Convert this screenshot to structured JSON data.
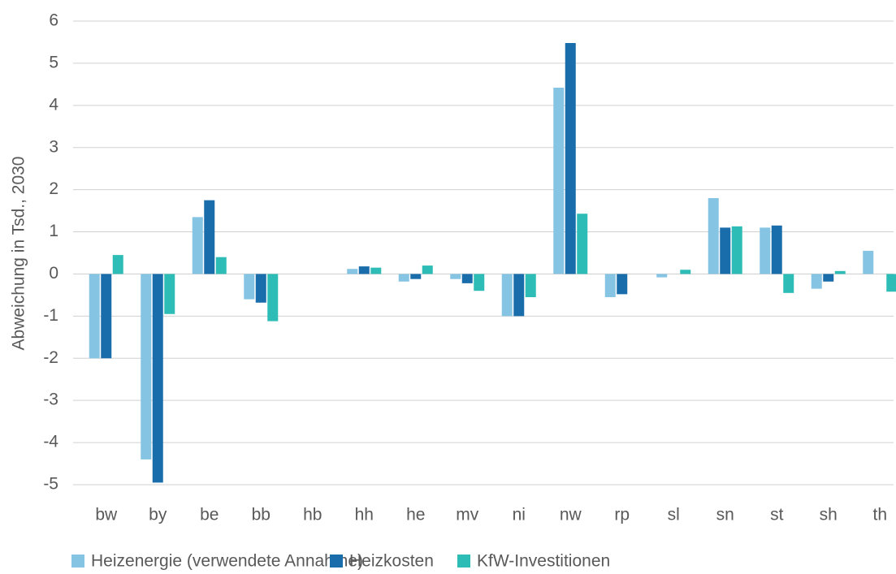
{
  "chart_data": {
    "type": "bar",
    "y_label": "Abweichung in Tsd., 2030",
    "categories": [
      "bw",
      "by",
      "be",
      "bb",
      "hb",
      "hh",
      "he",
      "mv",
      "ni",
      "nw",
      "rp",
      "sl",
      "sn",
      "st",
      "sh",
      "th"
    ],
    "series": [
      {
        "name": "Heizenergie (verwendete Annahme)",
        "color": "#86c4e3",
        "values": [
          -2.0,
          -4.4,
          1.35,
          -0.6,
          0,
          0.12,
          -0.18,
          -0.12,
          -1.0,
          4.42,
          -0.55,
          -0.08,
          1.8,
          1.1,
          -0.35,
          0.55
        ]
      },
      {
        "name": "Heizkosten",
        "color": "#1a6dab",
        "values": [
          -2.0,
          -4.95,
          1.75,
          -0.68,
          0,
          0.18,
          -0.12,
          -0.22,
          -1.0,
          5.48,
          -0.48,
          0,
          1.1,
          1.15,
          -0.18,
          0
        ]
      },
      {
        "name": "KfW-Investitionen",
        "color": "#2ebdb6",
        "values": [
          0.45,
          -0.95,
          0.4,
          -1.12,
          0,
          0.15,
          0.2,
          -0.4,
          -0.55,
          1.43,
          0,
          0.1,
          1.13,
          -0.45,
          0.07,
          -0.42
        ]
      }
    ],
    "ylim": [
      -5,
      6
    ],
    "yticks": [
      -5,
      -4,
      -3,
      -2,
      -1,
      0,
      1,
      2,
      3,
      4,
      5,
      6
    ],
    "grid": true,
    "legend": "bottom"
  }
}
